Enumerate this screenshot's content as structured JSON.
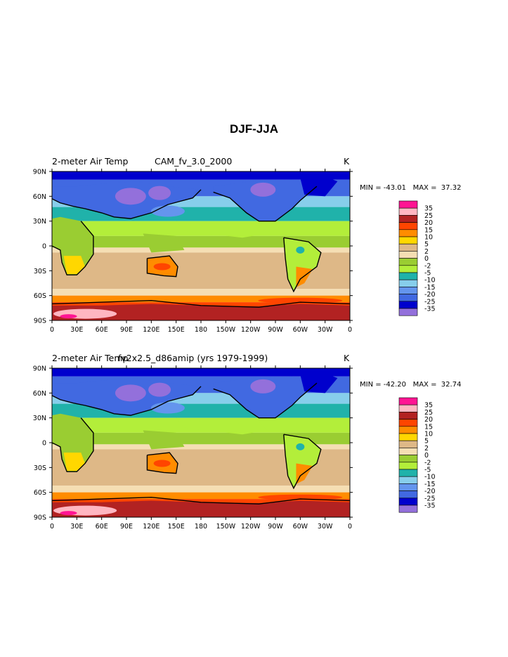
{
  "page": {
    "title": "DJF-JJA"
  },
  "chart_data": [
    {
      "type": "heatmap",
      "title_left": "2-meter Air Temp",
      "title_center": "CAM_fv_3.0_2000",
      "units": "K",
      "minmax": "MIN = -43.01   MAX =  37.32",
      "lat_ticks": [
        "90N",
        "60N",
        "30N",
        "0",
        "30S",
        "60S",
        "90S"
      ],
      "lon_ticks": [
        "0",
        "30E",
        "60E",
        "90E",
        "120E",
        "150E",
        "180",
        "150W",
        "120W",
        "90W",
        "60W",
        "30W",
        "0"
      ],
      "levels": [
        "35",
        "25",
        "20",
        "15",
        "10",
        "5",
        "2",
        "0",
        "-2",
        "-5",
        "-10",
        "-15",
        "-20",
        "-25",
        "-35"
      ],
      "colors": [
        "#ff1493",
        "#ffb6c1",
        "#b22222",
        "#ff4500",
        "#ff8c00",
        "#ffd700",
        "#deb887",
        "#f5deb3",
        "#9acd32",
        "#b3ee3a",
        "#20b2aa",
        "#87ceeb",
        "#6495ed",
        "#4169e1",
        "#0000cd",
        "#9370db"
      ]
    },
    {
      "type": "heatmap",
      "title_left": "2-meter Air Temp",
      "title_center": "fv2x2.5_d86amip (yrs 1979-1999)",
      "units": "K",
      "minmax": "MIN = -42.20   MAX =  32.74",
      "lat_ticks": [
        "90N",
        "60N",
        "30N",
        "0",
        "30S",
        "60S",
        "90S"
      ],
      "lon_ticks": [
        "0",
        "30E",
        "60E",
        "90E",
        "120E",
        "150E",
        "180",
        "150W",
        "120W",
        "90W",
        "60W",
        "30W",
        "0"
      ],
      "levels": [
        "35",
        "25",
        "20",
        "15",
        "10",
        "5",
        "2",
        "0",
        "-2",
        "-5",
        "-10",
        "-15",
        "-20",
        "-25",
        "-35"
      ],
      "colors": [
        "#ff1493",
        "#ffb6c1",
        "#b22222",
        "#ff4500",
        "#ff8c00",
        "#ffd700",
        "#deb887",
        "#f5deb3",
        "#9acd32",
        "#b3ee3a",
        "#20b2aa",
        "#87ceeb",
        "#6495ed",
        "#4169e1",
        "#0000cd",
        "#9370db"
      ]
    }
  ]
}
